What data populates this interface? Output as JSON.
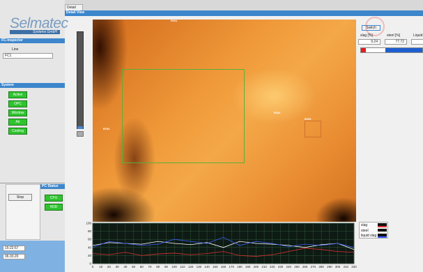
{
  "logo": {
    "name": "Selmatec",
    "sub": "Systems GmbH"
  },
  "tab": "Detail",
  "view_title": "Detail View",
  "inspector": {
    "title": "FC-Inspector",
    "line_label": "Line",
    "line_value": "FC1"
  },
  "system": {
    "title": "System",
    "buttons": [
      "Active",
      "OPC",
      "Window",
      "Air",
      "Cooling"
    ]
  },
  "stop": "Stop",
  "pc_status": {
    "title": "PC Status",
    "items": [
      "CPU",
      "HDD"
    ]
  },
  "time": "15:22:57",
  "date": "06.03.20",
  "rois": [
    "ROI1",
    "ROI2",
    "ROI3",
    "ROI4"
  ],
  "switch": "Switch",
  "readings": [
    {
      "label": "slag [%]",
      "value": "9.24"
    },
    {
      "label": "steel [%]",
      "value": "77.72"
    },
    {
      "label": "Liquid slag [%]",
      "value": "61"
    }
  ],
  "chart_data": {
    "type": "line",
    "x": [
      0,
      20,
      40,
      60,
      80,
      100,
      120,
      140,
      160,
      180,
      200,
      220,
      240,
      260,
      280,
      300,
      320
    ],
    "series": [
      {
        "name": "slag",
        "color": "#e03030",
        "values": [
          25,
          22,
          28,
          20,
          24,
          26,
          22,
          25,
          30,
          20,
          18,
          22,
          30,
          38,
          35,
          30,
          28
        ]
      },
      {
        "name": "steel",
        "color": "#ffffff",
        "values": [
          45,
          52,
          50,
          48,
          55,
          50,
          47,
          52,
          40,
          55,
          50,
          48,
          45,
          40,
          47,
          50,
          35
        ]
      },
      {
        "name": "liquid slag",
        "color": "#3a5cff",
        "values": [
          40,
          55,
          50,
          45,
          48,
          60,
          55,
          50,
          65,
          45,
          55,
          50,
          42,
          48,
          45,
          50,
          40
        ]
      }
    ],
    "xlim": [
      0,
      320
    ],
    "ylim": [
      0,
      100
    ],
    "xticks": [
      0,
      10,
      20,
      30,
      40,
      50,
      60,
      70,
      80,
      90,
      100,
      110,
      120,
      130,
      140,
      150,
      160,
      170,
      180,
      190,
      200,
      210,
      220,
      230,
      240,
      250,
      260,
      270,
      280,
      290,
      300,
      310,
      320
    ],
    "yticks": [
      0,
      20,
      40,
      60,
      80,
      100
    ],
    "grid": true
  }
}
